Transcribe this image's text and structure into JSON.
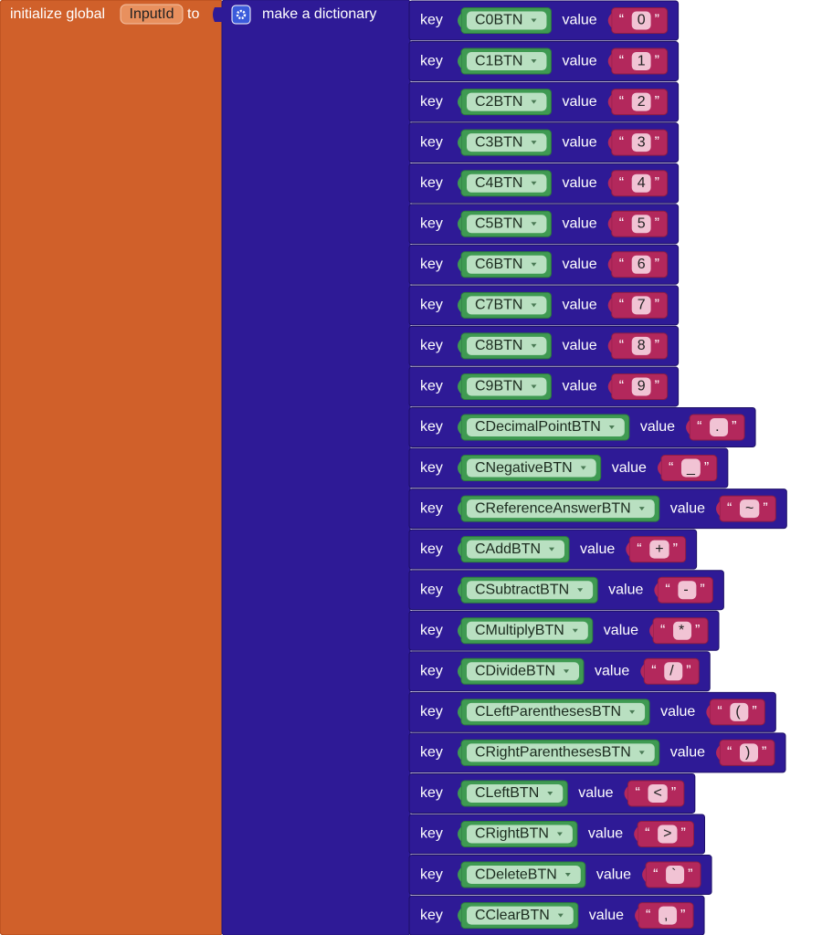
{
  "header": {
    "initialize": "initialize global",
    "variable": "InputId",
    "to": "to",
    "dictionary": "make a dictionary"
  },
  "labels": {
    "key": "key",
    "value": "value",
    "open_quote": "“",
    "close_quote": "”"
  },
  "pairs": [
    {
      "key": "C0BTN",
      "value": "0"
    },
    {
      "key": "C1BTN",
      "value": "1"
    },
    {
      "key": "C2BTN",
      "value": "2"
    },
    {
      "key": "C3BTN",
      "value": "3"
    },
    {
      "key": "C4BTN",
      "value": "4"
    },
    {
      "key": "C5BTN",
      "value": "5"
    },
    {
      "key": "C6BTN",
      "value": "6"
    },
    {
      "key": "C7BTN",
      "value": "7"
    },
    {
      "key": "C8BTN",
      "value": "8"
    },
    {
      "key": "C9BTN",
      "value": "9"
    },
    {
      "key": "CDecimalPointBTN",
      "value": "."
    },
    {
      "key": "CNegativeBTN",
      "value": "_"
    },
    {
      "key": "CReferenceAnswerBTN",
      "value": "~"
    },
    {
      "key": "CAddBTN",
      "value": "+"
    },
    {
      "key": "CSubtractBTN",
      "value": "-"
    },
    {
      "key": "CMultiplyBTN",
      "value": "*"
    },
    {
      "key": "CDivideBTN",
      "value": "/"
    },
    {
      "key": "CLeftParenthesesBTN",
      "value": "("
    },
    {
      "key": "CRightParenthesesBTN",
      "value": ")"
    },
    {
      "key": "CLeftBTN",
      "value": "<"
    },
    {
      "key": "CRightBTN",
      "value": ">"
    },
    {
      "key": "CDeleteBTN",
      "value": "`"
    },
    {
      "key": "CClearBTN",
      "value": ","
    }
  ]
}
